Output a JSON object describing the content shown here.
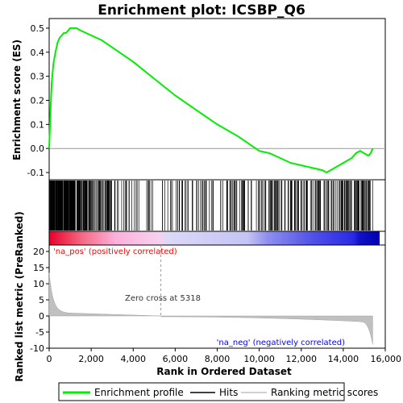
{
  "chart_data": {
    "type": "line",
    "title": "Enrichment plot: ICSBP_Q6",
    "xlabel": "Rank in Ordered Dataset",
    "ylabel_top": "Enrichment score (ES)",
    "ylabel_bottom": "Ranked list metric (PreRanked)",
    "x_range": [
      0,
      15500
    ],
    "x_ticks": [
      "0",
      "2,000",
      "4,000",
      "6,000",
      "8,000",
      "10,000",
      "12,000",
      "14,000",
      "16,000"
    ],
    "x_tick_values": [
      0,
      2000,
      4000,
      6000,
      8000,
      10000,
      12000,
      14000,
      16000
    ],
    "es_ylim": [
      -0.13,
      0.54
    ],
    "es_ticks": [
      "0.5",
      "0.4",
      "0.3",
      "0.2",
      "0.1",
      "0.0",
      "-0.1"
    ],
    "es_tick_values": [
      0.5,
      0.4,
      0.3,
      0.2,
      0.1,
      0.0,
      -0.1
    ],
    "metric_ylim": [
      -10,
      22
    ],
    "metric_ticks": [
      "20",
      "15",
      "10",
      "5",
      "0",
      "-5",
      "-10"
    ],
    "metric_tick_values": [
      20,
      15,
      10,
      5,
      0,
      -5,
      -10
    ],
    "series": [
      {
        "name": "Enrichment profile",
        "color": "#00ee00",
        "x": [
          0,
          60,
          120,
          200,
          300,
          400,
          500,
          600,
          700,
          800,
          900,
          1000,
          1100,
          1200,
          1300,
          1500,
          2000,
          2500,
          3000,
          4000,
          5000,
          6000,
          7000,
          8000,
          9000,
          10000,
          10500,
          11000,
          11500,
          12000,
          12500,
          13000,
          13200,
          13400,
          13600,
          13800,
          14000,
          14200,
          14400,
          14600,
          14800,
          15000,
          15200,
          15300,
          15400
        ],
        "values": [
          0.0,
          0.15,
          0.27,
          0.35,
          0.4,
          0.44,
          0.46,
          0.47,
          0.48,
          0.48,
          0.49,
          0.5,
          0.5,
          0.5,
          0.5,
          0.49,
          0.47,
          0.45,
          0.42,
          0.36,
          0.29,
          0.22,
          0.16,
          0.1,
          0.05,
          -0.01,
          -0.02,
          -0.04,
          -0.06,
          -0.07,
          -0.08,
          -0.09,
          -0.1,
          -0.09,
          -0.08,
          -0.07,
          -0.06,
          -0.05,
          -0.04,
          -0.02,
          -0.01,
          -0.02,
          -0.03,
          -0.02,
          0.0
        ]
      }
    ],
    "hits_label": "Hits",
    "metric_label": "Ranking metric scores",
    "zero_cross_label": "Zero cross at 5318",
    "zero_cross": 5318,
    "pos_label": "'na_pos' (positively correlated)",
    "neg_label": "'na_neg' (negatively correlated)",
    "pos_color": "#ff0000",
    "neg_color": "#0000ff",
    "grid": false,
    "legend_position": "bottom"
  },
  "legend": {
    "items": [
      {
        "label": "Enrichment profile",
        "color": "#00ee00"
      },
      {
        "label": "Hits",
        "color": "#000000"
      },
      {
        "label": "Ranking metric scores",
        "color": "#c0c0c0"
      }
    ]
  }
}
